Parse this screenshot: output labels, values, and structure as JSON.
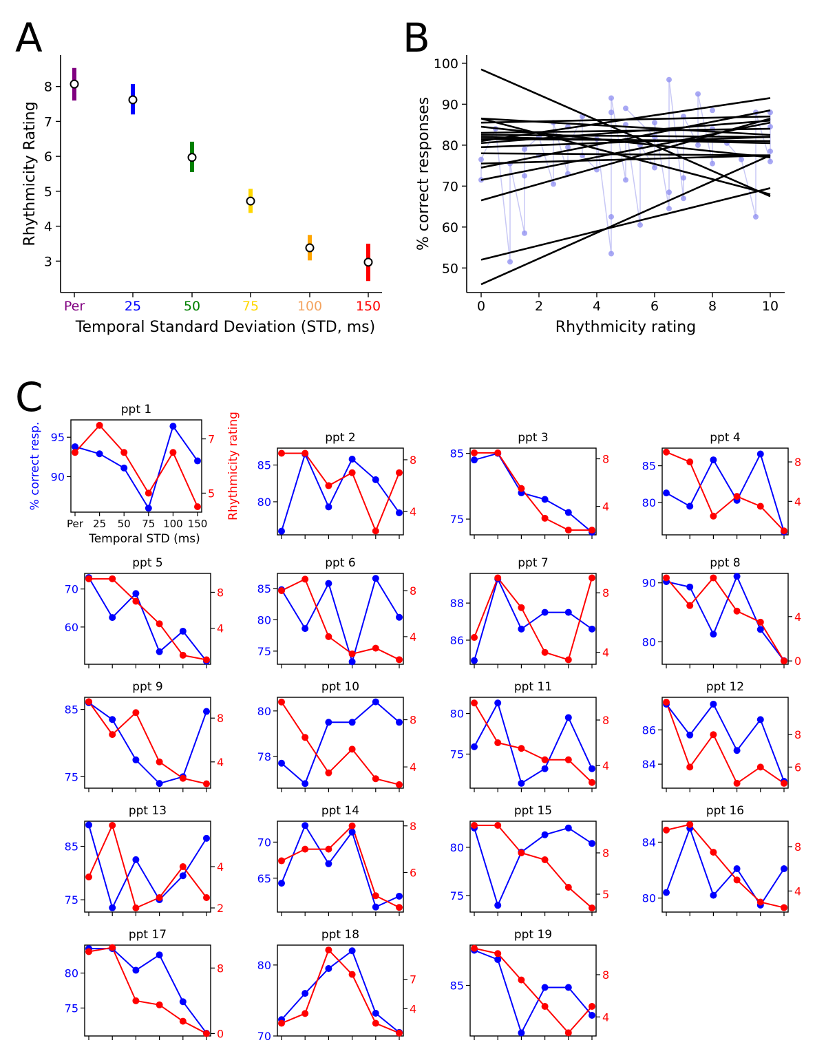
{
  "figure": {
    "panel_labels": [
      "A",
      "B",
      "C"
    ]
  },
  "colors": {
    "blue": "#0000ff",
    "red": "#ff0000",
    "axis": "#000000",
    "light_blue": "#8c8cf0",
    "light_line": "#c8c8f5"
  },
  "chart_data": [
    {
      "id": "A",
      "type": "scatter",
      "title": "",
      "xlabel": "Temporal Standard Deviation (STD, ms)",
      "ylabel": "Rhythmicity Rating",
      "categories": [
        "Per",
        "25",
        "50",
        "75",
        "100",
        "150"
      ],
      "category_colors": [
        "#800080",
        "#0000ff",
        "#008000",
        "#ffd700",
        "#ffa500",
        "#ff0000"
      ],
      "category_label_colors": [
        "#800080",
        "#0000ff",
        "#008000",
        "#ffd700",
        "#f4a460",
        "#ff0000"
      ],
      "means": [
        8.07,
        7.62,
        5.97,
        4.72,
        3.38,
        2.97
      ],
      "err_low": [
        7.6,
        7.2,
        5.55,
        4.38,
        3.02,
        2.43
      ],
      "err_high": [
        8.53,
        8.07,
        6.42,
        5.07,
        3.75,
        3.5
      ],
      "ylim": [
        2.1,
        8.9
      ],
      "yticks": [
        3,
        4,
        5,
        6,
        7,
        8
      ]
    },
    {
      "id": "B",
      "type": "scatter",
      "title": "",
      "xlabel": "Rhythmicity rating",
      "ylabel": "% correct responses",
      "xlim": [
        -0.5,
        10.5
      ],
      "ylim": [
        44,
        102
      ],
      "xticks": [
        0,
        2,
        4,
        6,
        8,
        10
      ],
      "yticks": [
        50,
        60,
        70,
        80,
        90,
        100
      ],
      "regression_lines": [
        [
          0,
          98.5,
          10,
          67.5
        ],
        [
          0,
          86.5,
          10,
          68.0
        ],
        [
          0,
          46.0,
          10,
          77.5
        ],
        [
          0,
          52.0,
          10,
          69.5
        ],
        [
          0,
          66.5,
          10,
          86.5
        ],
        [
          0,
          71.5,
          10,
          85.5
        ],
        [
          0,
          74.5,
          10,
          88.5
        ],
        [
          0,
          75.5,
          10,
          77.5
        ],
        [
          0,
          78.0,
          10,
          77.5
        ],
        [
          0,
          79.5,
          10,
          82.0
        ],
        [
          0,
          80.5,
          10,
          86.0
        ],
        [
          0,
          81.0,
          10,
          91.5
        ],
        [
          0,
          81.5,
          10,
          81.0
        ],
        [
          0,
          82.0,
          10,
          80.5
        ],
        [
          0,
          82.5,
          10,
          82.0
        ],
        [
          0,
          83.0,
          10,
          84.0
        ],
        [
          0,
          84.5,
          10,
          77.0
        ],
        [
          0,
          85.5,
          10,
          87.0
        ],
        [
          0,
          86.5,
          10,
          82.5
        ]
      ],
      "points_note": "faded individual participant points",
      "points": [
        [
          0,
          71.5
        ],
        [
          0,
          76.5
        ],
        [
          0.5,
          84
        ],
        [
          1,
          51.5
        ],
        [
          1,
          75.5
        ],
        [
          1.5,
          58.5
        ],
        [
          1.5,
          72.5
        ],
        [
          1.5,
          79
        ],
        [
          2,
          82
        ],
        [
          2.5,
          70.5
        ],
        [
          2.5,
          85.5
        ],
        [
          3,
          73
        ],
        [
          3,
          79.5
        ],
        [
          3.5,
          87
        ],
        [
          3.5,
          77.5
        ],
        [
          4,
          74
        ],
        [
          4,
          81.5
        ],
        [
          4.5,
          53.5
        ],
        [
          4.5,
          62.5
        ],
        [
          4.5,
          88
        ],
        [
          4.5,
          91.5
        ],
        [
          5,
          71.5
        ],
        [
          5,
          85
        ],
        [
          5.5,
          60.5
        ],
        [
          5.5,
          80
        ],
        [
          6,
          74.5
        ],
        [
          6,
          85.5
        ],
        [
          6.5,
          64.5
        ],
        [
          6.5,
          68.5
        ],
        [
          6.5,
          96
        ],
        [
          7,
          67
        ],
        [
          7,
          72
        ],
        [
          7,
          87
        ],
        [
          7.5,
          80
        ],
        [
          7.5,
          92.5
        ],
        [
          8,
          75.5
        ],
        [
          8,
          84
        ],
        [
          8.5,
          80.5
        ],
        [
          9,
          76.5
        ],
        [
          9.5,
          62.5
        ],
        [
          9.5,
          88
        ],
        [
          10,
          76
        ],
        [
          10,
          78.5
        ],
        [
          10,
          84.5
        ],
        [
          10,
          88
        ],
        [
          3,
          84.5
        ],
        [
          5,
          89
        ],
        [
          6,
          82
        ],
        [
          8,
          88.5
        ],
        [
          2,
          77.5
        ]
      ]
    },
    {
      "id": "C",
      "type": "line",
      "xlabel": "Temporal STD (ms)",
      "ylabel_left": "% correct resp.",
      "ylabel_right": "Rhythmicity rating",
      "x_tick_labels": [
        "Per",
        "25",
        "50",
        "75",
        "100",
        "150"
      ],
      "series": [
        {
          "name": "ppt 1",
          "accuracy": [
            93.8,
            92.9,
            91.1,
            86.0,
            96.4,
            92.0
          ],
          "rating": [
            6.5,
            7.5,
            6.5,
            5.0,
            6.5,
            4.5
          ],
          "acc_ylim": [
            85.5,
            97.2
          ],
          "rat_ylim": [
            4.3,
            7.7
          ],
          "acc_ticks": [
            90,
            95
          ],
          "rat_ticks": [
            5,
            7
          ]
        },
        {
          "name": "ppt 2",
          "accuracy": [
            76.0,
            86.5,
            79.3,
            85.8,
            83.0,
            78.5
          ],
          "rating": [
            8.5,
            8.5,
            6.0,
            7.0,
            2.5,
            7.0
          ],
          "acc_ylim": [
            75.5,
            87.3
          ],
          "rat_ylim": [
            2.2,
            8.9
          ],
          "acc_ticks": [
            80,
            85
          ],
          "rat_ticks": [
            4,
            8
          ]
        },
        {
          "name": "ppt 3",
          "accuracy": [
            84.0,
            85.0,
            79.0,
            78.0,
            76.0,
            73.0
          ],
          "rating": [
            8.5,
            8.5,
            5.5,
            3.0,
            2.0,
            2.0
          ],
          "acc_ylim": [
            72.6,
            85.8
          ],
          "rat_ylim": [
            1.6,
            8.9
          ],
          "acc_ticks": [
            75,
            85
          ],
          "rat_ticks": [
            4,
            8
          ]
        },
        {
          "name": "ppt 4",
          "accuracy": [
            81.3,
            79.5,
            85.8,
            80.3,
            86.6,
            76.0
          ],
          "rating": [
            9.0,
            8.0,
            2.5,
            4.5,
            3.5,
            1.0
          ],
          "acc_ylim": [
            75.6,
            87.4
          ],
          "rat_ylim": [
            0.6,
            9.4
          ],
          "acc_ticks": [
            80,
            85
          ],
          "rat_ticks": [
            4,
            8
          ]
        },
        {
          "name": "ppt 5",
          "accuracy": [
            73.0,
            62.5,
            68.8,
            53.5,
            58.9,
            51.0
          ],
          "rating": [
            9.5,
            9.5,
            7.0,
            4.5,
            1.0,
            0.5
          ],
          "acc_ylim": [
            50.2,
            74.1
          ],
          "rat_ylim": [
            0,
            10.1
          ],
          "acc_ticks": [
            60,
            70
          ],
          "rat_ticks": [
            4,
            8
          ]
        },
        {
          "name": "ppt 6",
          "accuracy": [
            84.8,
            78.6,
            85.8,
            73.3,
            86.6,
            80.4
          ],
          "rating": [
            8.0,
            9.0,
            4.0,
            2.5,
            3.0,
            2.0
          ],
          "acc_ylim": [
            72.9,
            87.4
          ],
          "rat_ylim": [
            1.6,
            9.5
          ],
          "acc_ticks": [
            75,
            80,
            85
          ],
          "rat_ticks": [
            4,
            8
          ]
        },
        {
          "name": "ppt 7",
          "accuracy": [
            84.9,
            89.3,
            86.6,
            87.5,
            87.5,
            86.6
          ],
          "rating": [
            5.0,
            9.0,
            7.0,
            4.0,
            3.5,
            9.0
          ],
          "acc_ylim": [
            84.7,
            89.6
          ],
          "rat_ylim": [
            3.2,
            9.3
          ],
          "acc_ticks": [
            86,
            88
          ],
          "rat_ticks": [
            4,
            8
          ]
        },
        {
          "name": "ppt 8",
          "accuracy": [
            90.2,
            89.3,
            81.3,
            91.1,
            82.1,
            76.8
          ],
          "rating": [
            7.5,
            5.0,
            7.5,
            4.5,
            3.5,
            0.0
          ],
          "acc_ylim": [
            76.2,
            91.6
          ],
          "rat_ylim": [
            -0.3,
            7.9
          ],
          "acc_ticks": [
            80,
            90
          ],
          "rat_ticks": [
            0,
            4
          ]
        },
        {
          "name": "ppt 9",
          "accuracy": [
            86.0,
            83.5,
            77.5,
            74.0,
            75.0,
            84.7
          ],
          "rating": [
            9.5,
            6.5,
            8.5,
            4.0,
            2.5,
            2.0
          ],
          "acc_ylim": [
            73.3,
            86.8
          ],
          "rat_ylim": [
            1.6,
            9.9
          ],
          "acc_ticks": [
            75,
            85
          ],
          "rat_ticks": [
            4,
            8
          ]
        },
        {
          "name": "ppt 10",
          "accuracy": [
            77.7,
            76.8,
            79.5,
            79.5,
            80.4,
            79.5
          ],
          "rating": [
            9.5,
            6.5,
            3.5,
            5.5,
            3.0,
            2.5
          ],
          "acc_ylim": [
            76.6,
            80.6
          ],
          "rat_ylim": [
            2.2,
            9.9
          ],
          "acc_ticks": [
            78,
            80
          ],
          "rat_ticks": [
            4,
            8
          ]
        },
        {
          "name": "ppt 11",
          "accuracy": [
            75.9,
            81.3,
            71.4,
            73.2,
            79.5,
            73.2
          ],
          "rating": [
            9.5,
            6.0,
            5.5,
            4.5,
            4.5,
            2.5
          ],
          "acc_ylim": [
            70.8,
            82.0
          ],
          "rat_ylim": [
            2.0,
            10.0
          ],
          "acc_ticks": [
            75,
            80
          ],
          "rat_ticks": [
            4,
            8
          ]
        },
        {
          "name": "ppt 12",
          "accuracy": [
            87.5,
            85.7,
            87.5,
            84.8,
            86.6,
            83.0
          ],
          "rating": [
            10.0,
            6.0,
            8.0,
            5.0,
            6.0,
            5.0
          ],
          "acc_ylim": [
            82.6,
            87.9
          ],
          "rat_ylim": [
            4.7,
            10.3
          ],
          "acc_ticks": [
            84,
            86
          ],
          "rat_ticks": [
            6,
            8
          ]
        },
        {
          "name": "ppt 13",
          "accuracy": [
            89.0,
            73.5,
            82.5,
            75.0,
            79.5,
            86.5
          ],
          "rating": [
            3.5,
            6.0,
            2.0,
            2.5,
            4.0,
            2.5
          ],
          "acc_ylim": [
            72.7,
            89.7
          ],
          "rat_ylim": [
            1.8,
            6.2
          ],
          "acc_ticks": [
            75,
            85
          ],
          "rat_ticks": [
            2,
            4
          ]
        },
        {
          "name": "ppt 14",
          "accuracy": [
            64.3,
            72.3,
            67.0,
            71.4,
            61.0,
            62.5
          ],
          "rating": [
            6.5,
            7.0,
            7.0,
            8.0,
            5.0,
            4.5
          ],
          "acc_ylim": [
            60.3,
            72.9
          ],
          "rat_ylim": [
            4.3,
            8.2
          ],
          "acc_ticks": [
            65,
            70
          ],
          "rat_ticks": [
            6,
            8
          ]
        },
        {
          "name": "ppt 15",
          "accuracy": [
            82.0,
            74.0,
            79.5,
            81.3,
            82.0,
            80.4
          ],
          "rating": [
            10.0,
            10.0,
            8.0,
            7.5,
            5.5,
            4.0
          ],
          "acc_ylim": [
            73.3,
            82.7
          ],
          "rat_ylim": [
            3.7,
            10.3
          ],
          "acc_ticks": [
            75,
            80
          ],
          "rat_ticks": [
            5,
            8
          ]
        },
        {
          "name": "ppt 16",
          "accuracy": [
            80.4,
            85.0,
            80.2,
            82.1,
            79.5,
            82.1
          ],
          "rating": [
            9.5,
            10.0,
            7.5,
            5.0,
            3.0,
            2.5
          ],
          "acc_ylim": [
            79.0,
            85.5
          ],
          "rat_ylim": [
            2.1,
            10.3
          ],
          "acc_ticks": [
            80,
            84
          ],
          "rat_ticks": [
            4,
            8
          ]
        },
        {
          "name": "ppt 17",
          "accuracy": [
            83.5,
            83.5,
            80.4,
            82.6,
            75.9,
            71.4
          ],
          "rating": [
            10.0,
            10.5,
            4.0,
            3.5,
            1.5,
            0.0
          ],
          "acc_ylim": [
            71.0,
            84.0
          ],
          "rat_ylim": [
            -0.3,
            10.8
          ],
          "acc_ticks": [
            75,
            80
          ],
          "rat_ticks": [
            0,
            8
          ]
        },
        {
          "name": "ppt 18",
          "accuracy": [
            72.3,
            76.0,
            79.5,
            82.0,
            73.2,
            70.5
          ],
          "rating": [
            2.5,
            3.5,
            10.0,
            7.5,
            2.5,
            1.5
          ],
          "acc_ylim": [
            70.0,
            82.8
          ],
          "rat_ylim": [
            1.2,
            10.5
          ],
          "acc_ticks": [
            70,
            80
          ],
          "rat_ticks": [
            4,
            7
          ]
        },
        {
          "name": "ppt 19",
          "accuracy": [
            88.4,
            87.5,
            80.4,
            84.8,
            84.8,
            82.1
          ],
          "rating": [
            10.5,
            10.0,
            7.5,
            5.0,
            2.5,
            5.0
          ],
          "acc_ylim": [
            80.1,
            88.9
          ],
          "rat_ylim": [
            2.2,
            10.8
          ],
          "acc_ticks": [
            80,
            85
          ],
          "rat_ticks": [
            4,
            8
          ]
        }
      ]
    }
  ]
}
